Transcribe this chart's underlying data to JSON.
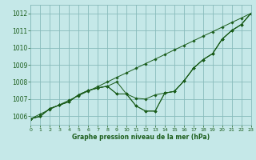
{
  "title": "Graphe pression niveau de la mer (hPa)",
  "bg_color": "#c5e8e8",
  "grid_color": "#88bbbb",
  "line_color": "#1a5c1a",
  "xlim": [
    0,
    23
  ],
  "ylim": [
    1005.5,
    1012.5
  ],
  "yticks": [
    1006,
    1007,
    1008,
    1009,
    1010,
    1011,
    1012
  ],
  "xticks": [
    0,
    1,
    2,
    3,
    4,
    5,
    6,
    7,
    8,
    9,
    10,
    11,
    12,
    13,
    14,
    15,
    16,
    17,
    18,
    19,
    20,
    21,
    22,
    23
  ],
  "series": [
    [
      1005.85,
      1006.13,
      1006.4,
      1006.67,
      1006.93,
      1007.2,
      1007.47,
      1007.73,
      1008.0,
      1008.27,
      1008.53,
      1008.8,
      1009.07,
      1009.33,
      1009.6,
      1009.87,
      1010.13,
      1010.4,
      1010.67,
      1010.93,
      1011.2,
      1011.47,
      1011.73,
      1012.0
    ],
    [
      1005.85,
      1006.0,
      1006.45,
      1006.65,
      1006.85,
      1007.25,
      1007.5,
      1007.65,
      1007.75,
      1007.3,
      1007.3,
      1007.05,
      1007.0,
      1007.25,
      1007.35,
      1007.45,
      1008.05,
      1008.8,
      1009.3,
      1009.65,
      1010.5,
      1011.0,
      1011.35,
      1012.0
    ],
    [
      1005.85,
      1006.0,
      1006.45,
      1006.65,
      1006.85,
      1007.25,
      1007.5,
      1007.65,
      1007.75,
      1007.3,
      1007.3,
      1006.6,
      1006.3,
      1006.3,
      1007.35,
      1007.45,
      1008.05,
      1008.8,
      1009.3,
      1009.65,
      1010.5,
      1011.0,
      1011.35,
      1012.0
    ],
    [
      1005.85,
      1006.0,
      1006.45,
      1006.65,
      1006.85,
      1007.25,
      1007.5,
      1007.65,
      1007.75,
      1008.0,
      1007.3,
      1006.6,
      1006.3,
      1006.3,
      1007.35,
      1007.45,
      1008.05,
      1008.8,
      1009.3,
      1009.65,
      1010.5,
      1011.0,
      1011.35,
      1012.0
    ]
  ],
  "figsize": [
    3.2,
    2.0
  ],
  "dpi": 100
}
